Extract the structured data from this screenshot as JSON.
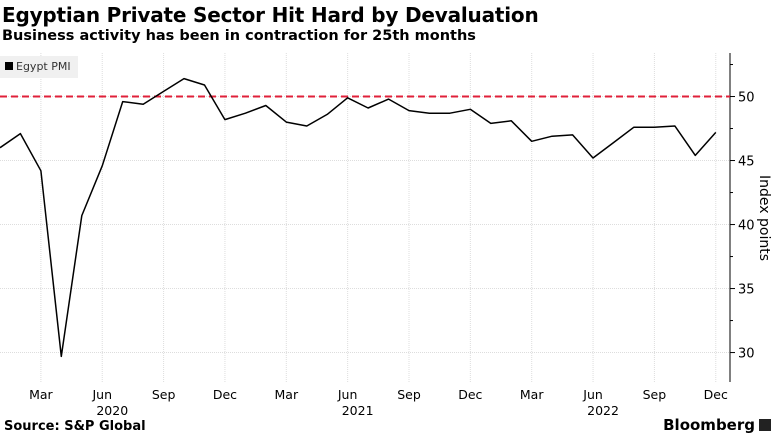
{
  "title": "Egyptian Private Sector Hit Hard by Devaluation",
  "subtitle": "Business activity has been in contraction for 25th months",
  "source": "Source: S&P Global",
  "brand": "Bloomberg",
  "chart_data": {
    "type": "line",
    "legend": {
      "entries": [
        "Egypt PMI"
      ],
      "placement": "top-left"
    },
    "ylabel": "Index points",
    "ylim": [
      27.7,
      53.4
    ],
    "yticks": [
      30,
      35,
      40,
      45,
      50
    ],
    "y_axis_side": "right",
    "grid": true,
    "reference_line": {
      "value": 50,
      "color": "#e0203a",
      "style": "dashed"
    },
    "line_color": "#000000",
    "x_ticks": [
      {
        "month": "2020-03",
        "label": "Mar",
        "year": ""
      },
      {
        "month": "2020-06",
        "label": "Jun",
        "year": "2020"
      },
      {
        "month": "2020-09",
        "label": "Sep",
        "year": ""
      },
      {
        "month": "2020-12",
        "label": "Dec",
        "year": ""
      },
      {
        "month": "2021-03",
        "label": "Mar",
        "year": ""
      },
      {
        "month": "2021-06",
        "label": "Jun",
        "year": "2021"
      },
      {
        "month": "2021-09",
        "label": "Sep",
        "year": ""
      },
      {
        "month": "2021-12",
        "label": "Dec",
        "year": ""
      },
      {
        "month": "2022-03",
        "label": "Mar",
        "year": ""
      },
      {
        "month": "2022-06",
        "label": "Jun",
        "year": "2022"
      },
      {
        "month": "2022-09",
        "label": "Sep",
        "year": ""
      },
      {
        "month": "2022-12",
        "label": "Dec",
        "year": ""
      }
    ],
    "series": [
      {
        "name": "Egypt PMI",
        "x": [
          "2020-01",
          "2020-02",
          "2020-03",
          "2020-04",
          "2020-05",
          "2020-06",
          "2020-07",
          "2020-08",
          "2020-09",
          "2020-10",
          "2020-11",
          "2020-12",
          "2021-01",
          "2021-02",
          "2021-03",
          "2021-04",
          "2021-05",
          "2021-06",
          "2021-07",
          "2021-08",
          "2021-09",
          "2021-10",
          "2021-11",
          "2021-12",
          "2022-01",
          "2022-02",
          "2022-03",
          "2022-04",
          "2022-05",
          "2022-06",
          "2022-07",
          "2022-08",
          "2022-09",
          "2022-10",
          "2022-11",
          "2022-12"
        ],
        "values": [
          46.0,
          47.1,
          44.2,
          29.7,
          40.7,
          44.6,
          49.6,
          49.4,
          50.4,
          51.4,
          50.9,
          48.2,
          48.7,
          49.3,
          48.0,
          47.7,
          48.6,
          49.9,
          49.1,
          49.8,
          48.9,
          48.7,
          48.7,
          49.0,
          47.9,
          48.1,
          46.5,
          46.9,
          47.0,
          45.2,
          46.4,
          47.6,
          47.6,
          47.7,
          45.4,
          47.2
        ]
      }
    ]
  }
}
